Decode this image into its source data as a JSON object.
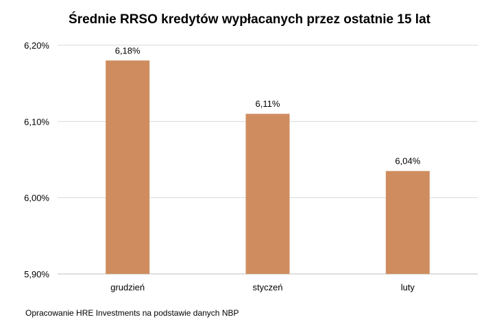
{
  "chart_data": {
    "type": "bar",
    "title": "Średnie RRSO kredytów wypłacanych przez ostatnie 15 lat",
    "categories": [
      "grudzień",
      "styczeń",
      "luty"
    ],
    "values": [
      6.18,
      6.11,
      6.035
    ],
    "data_labels": [
      "6,18%",
      "6,11%",
      "6,04%"
    ],
    "ylim": [
      5.9,
      6.2
    ],
    "yticks": [
      5.9,
      6.0,
      6.1,
      6.2
    ],
    "ytick_labels": [
      "5,90%",
      "6,00%",
      "6,10%",
      "6,20%"
    ],
    "xlabel": "",
    "ylabel": "",
    "grid": true,
    "legend": "none",
    "bar_color": "#CF8D5F"
  },
  "footer": {
    "source": "Opracowanie HRE Investments na podstawie danych NBP"
  }
}
